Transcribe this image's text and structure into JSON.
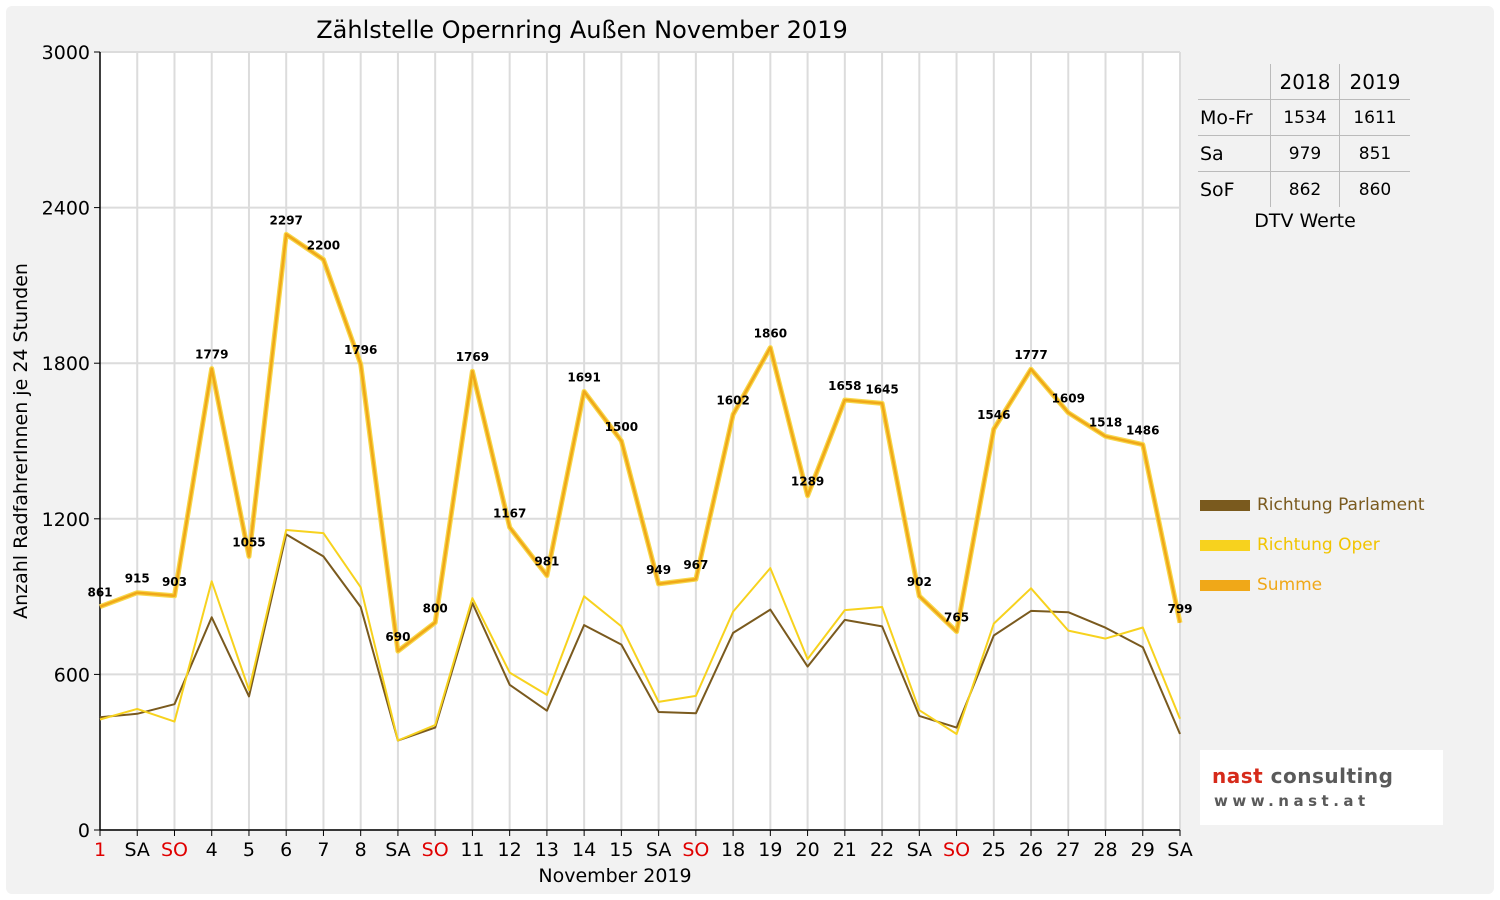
{
  "chart_data": {
    "type": "line",
    "title": "Zählstelle Opernring Außen November 2019",
    "xlabel": "November 2019",
    "ylabel": "Anzahl RadfahrerInnen je 24 Stunden",
    "ylim": [
      0,
      3000
    ],
    "yticks": [
      0,
      600,
      1200,
      1800,
      2400,
      3000
    ],
    "grid": true,
    "legend_position": "right",
    "categories": [
      "1",
      "SA",
      "SO",
      "4",
      "5",
      "6",
      "7",
      "8",
      "SA",
      "SO",
      "11",
      "12",
      "13",
      "14",
      "15",
      "SA",
      "SO",
      "18",
      "19",
      "20",
      "21",
      "22",
      "SA",
      "SO",
      "25",
      "26",
      "27",
      "28",
      "29",
      "SA"
    ],
    "red_categories": [
      0,
      2,
      9,
      16,
      23
    ],
    "series": [
      {
        "name": "Richtung Parlament",
        "color": "#7a5a1e",
        "values": [
          435,
          448,
          485,
          820,
          515,
          1140,
          1055,
          860,
          345,
          395,
          875,
          560,
          460,
          790,
          715,
          455,
          450,
          760,
          850,
          630,
          810,
          785,
          440,
          395,
          750,
          845,
          840,
          780,
          705,
          370
        ]
      },
      {
        "name": "Richtung Oper",
        "color": "#f7d21e",
        "values": [
          426,
          467,
          418,
          959,
          540,
          1157,
          1145,
          936,
          345,
          405,
          894,
          607,
          521,
          901,
          785,
          494,
          517,
          842,
          1010,
          659,
          848,
          860,
          462,
          370,
          796,
          932,
          769,
          738,
          781,
          429
        ]
      },
      {
        "name": "Summe",
        "color": "#f0a818",
        "values": [
          861,
          915,
          903,
          1779,
          1055,
          2297,
          2200,
          1796,
          690,
          800,
          1769,
          1167,
          981,
          1691,
          1500,
          949,
          967,
          1602,
          1860,
          1289,
          1658,
          1645,
          902,
          765,
          1546,
          1777,
          1609,
          1518,
          1486,
          799
        ]
      }
    ]
  },
  "dtv_table": {
    "header": [
      "",
      "2018",
      "2019"
    ],
    "rows": [
      {
        "label": "Mo-Fr",
        "v2018": "1534",
        "v2019": "1611"
      },
      {
        "label": "Sa",
        "v2018": "979",
        "v2019": "851"
      },
      {
        "label": "SoF",
        "v2018": "862",
        "v2019": "860"
      }
    ],
    "caption": "DTV Werte"
  },
  "legend": [
    {
      "label": "Richtung Parlament",
      "color": "#7a5a1e",
      "text_color": "#7a5a1e"
    },
    {
      "label": "Richtung Oper",
      "color": "#f7d21e",
      "text_color": "#f2c400"
    },
    {
      "label": "Summe",
      "color": "#f0a818",
      "text_color": "#f0a818"
    }
  ],
  "logo": {
    "line1_a": "nast",
    "line1_b": " consulting",
    "line2": "www.nast.at"
  }
}
